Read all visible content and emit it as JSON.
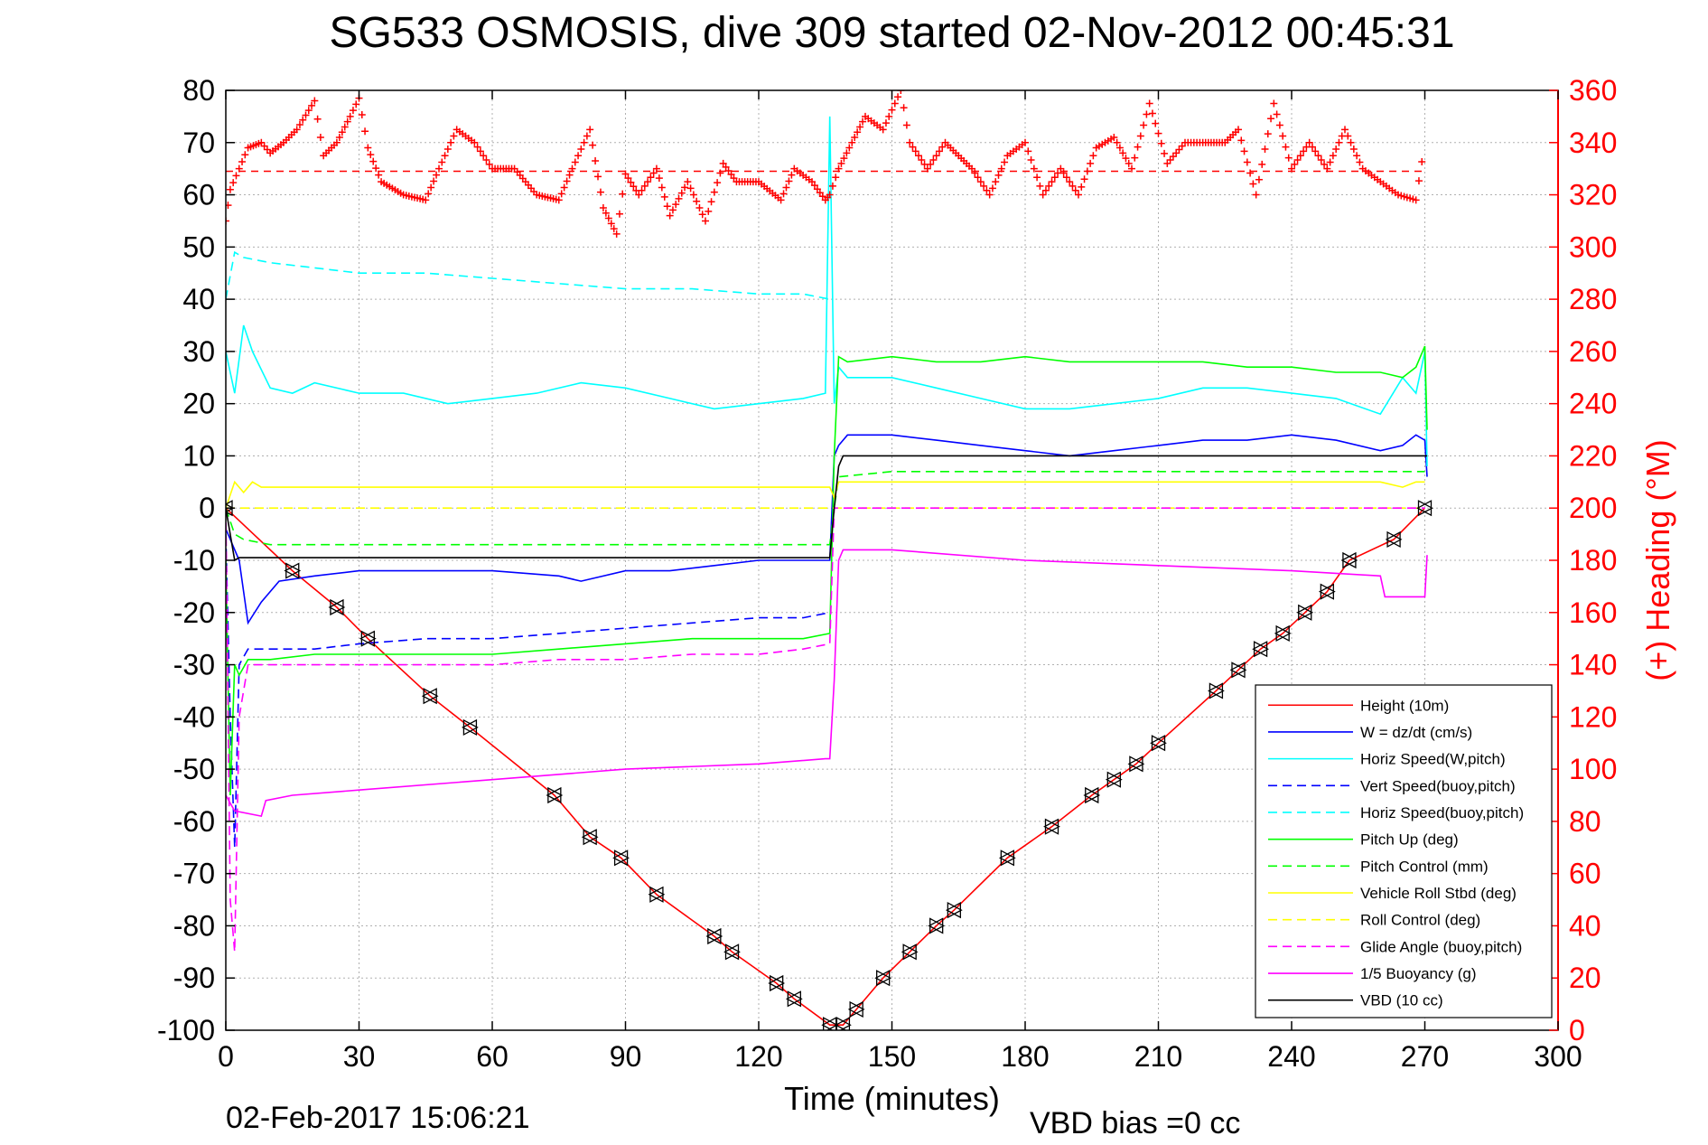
{
  "chart_data": {
    "type": "line",
    "title": "SG533 OSMOSIS, dive 309 started 02-Nov-2012 00:45:31",
    "xlabel": "Time (minutes)",
    "ylabel_left": "",
    "ylabel_right": "(+) Heading (°M)",
    "footer_left": "02-Feb-2017 15:06:21",
    "footer_right": "VBD bias =0 cc",
    "xlim": [
      0,
      300
    ],
    "xticks": [
      0,
      30,
      60,
      90,
      120,
      150,
      180,
      210,
      240,
      270,
      300
    ],
    "ylim_left": [
      -100,
      80
    ],
    "yticks_left": [
      80,
      70,
      60,
      50,
      40,
      30,
      20,
      10,
      0,
      -10,
      -20,
      -30,
      -40,
      -50,
      -60,
      -70,
      -80,
      -90,
      -100
    ],
    "ylim_right": [
      0,
      360
    ],
    "yticks_right": [
      360,
      340,
      320,
      300,
      280,
      260,
      240,
      220,
      200,
      180,
      160,
      140,
      120,
      100,
      80,
      60,
      40,
      20,
      0
    ],
    "grid": true,
    "legend_position": "bottom-right",
    "axis_color_right": "#ff0000",
    "series": [
      {
        "name": "Height (10m)",
        "color": "#ff0000",
        "dash": "solid",
        "x": [
          0,
          15,
          25,
          32,
          46,
          55,
          74,
          82,
          89,
          97,
          110,
          114,
          124,
          128,
          136,
          139,
          142,
          148,
          154,
          160,
          164,
          176,
          186,
          195,
          200,
          205,
          210,
          223,
          228,
          233,
          238,
          243,
          248,
          253,
          263,
          270
        ],
        "y": [
          0,
          -12,
          -19,
          -25,
          -36,
          -42,
          -55,
          -63,
          -67,
          -74,
          -82,
          -85,
          -91,
          -94,
          -99,
          -99,
          -96,
          -90,
          -85,
          -80,
          -77,
          -67,
          -61,
          -55,
          -52,
          -49,
          -45,
          -35,
          -31,
          -27,
          -24,
          -20,
          -16,
          -10,
          -6,
          0
        ]
      },
      {
        "name": "W = dz/dt (cm/s)",
        "color": "#0000ff",
        "dash": "solid",
        "x": [
          0,
          3,
          5,
          8,
          12,
          20,
          30,
          45,
          60,
          75,
          80,
          90,
          100,
          110,
          120,
          130,
          135,
          136,
          137,
          138,
          140,
          150,
          160,
          170,
          180,
          190,
          200,
          210,
          220,
          230,
          240,
          250,
          260,
          265,
          268,
          270,
          270.5
        ],
        "y": [
          -4,
          -10,
          -22,
          -18,
          -14,
          -13,
          -12,
          -12,
          -12,
          -13,
          -14,
          -12,
          -12,
          -11,
          -10,
          -10,
          -10,
          -10,
          10,
          12,
          14,
          14,
          13,
          12,
          11,
          10,
          11,
          12,
          13,
          13,
          14,
          13,
          11,
          12,
          14,
          13,
          6
        ]
      },
      {
        "name": "Horiz Speed(W,pitch)",
        "color": "#00ffff",
        "dash": "solid",
        "x": [
          0,
          2,
          4,
          6,
          10,
          15,
          20,
          30,
          40,
          50,
          60,
          70,
          80,
          90,
          100,
          110,
          120,
          130,
          135,
          136,
          137,
          138,
          140,
          150,
          160,
          170,
          180,
          190,
          200,
          210,
          220,
          230,
          240,
          250,
          260,
          265,
          268,
          270,
          270.5
        ],
        "y": [
          30,
          22,
          35,
          30,
          23,
          22,
          24,
          22,
          22,
          20,
          21,
          22,
          24,
          23,
          21,
          19,
          20,
          21,
          22,
          75,
          20,
          27,
          25,
          25,
          23,
          21,
          19,
          19,
          20,
          21,
          23,
          23,
          22,
          21,
          18,
          25,
          22,
          30,
          8
        ]
      },
      {
        "name": "Vert Speed(buoy,pitch)",
        "color": "#0000ff",
        "dash": "dashed",
        "x": [
          0,
          1,
          2,
          3,
          5,
          10,
          20,
          30,
          45,
          60,
          75,
          90,
          105,
          120,
          130,
          136
        ],
        "y": [
          -5,
          -40,
          -65,
          -30,
          -27,
          -27,
          -27,
          -26,
          -25,
          -25,
          -24,
          -23,
          -22,
          -21,
          -21,
          -20
        ]
      },
      {
        "name": "Horiz Speed(buoy,pitch)",
        "color": "#00ffff",
        "dash": "dashed",
        "x": [
          0,
          2,
          4,
          10,
          20,
          30,
          45,
          60,
          75,
          90,
          105,
          120,
          130,
          136
        ],
        "y": [
          40,
          49,
          48,
          47,
          46,
          45,
          45,
          44,
          43,
          42,
          42,
          41,
          41,
          40
        ]
      },
      {
        "name": "Pitch Up (deg)",
        "color": "#00ff00",
        "dash": "solid",
        "x": [
          0,
          1,
          2,
          3,
          5,
          10,
          20,
          30,
          45,
          60,
          75,
          90,
          105,
          120,
          130,
          136,
          137,
          138,
          140,
          150,
          160,
          170,
          180,
          190,
          200,
          210,
          220,
          230,
          240,
          250,
          260,
          265,
          268,
          270,
          270.5
        ],
        "y": [
          -10,
          -55,
          -30,
          -32,
          -29,
          -29,
          -28,
          -28,
          -28,
          -28,
          -27,
          -26,
          -25,
          -25,
          -25,
          -24,
          10,
          29,
          28,
          29,
          28,
          28,
          29,
          28,
          28,
          28,
          28,
          27,
          27,
          26,
          26,
          25,
          27,
          31,
          15
        ]
      },
      {
        "name": "Pitch Control (mm)",
        "color": "#00ff00",
        "dash": "dashed",
        "x": [
          0,
          2,
          4,
          10,
          30,
          60,
          90,
          120,
          136,
          137,
          138,
          150,
          180,
          210,
          240,
          270
        ],
        "y": [
          0,
          -5,
          -6,
          -7,
          -7,
          -7,
          -7,
          -7,
          -7,
          0,
          6,
          7,
          7,
          7,
          7,
          7
        ]
      },
      {
        "name": "Vehicle Roll Stbd (deg)",
        "color": "#ffff00",
        "dash": "solid",
        "x": [
          0,
          2,
          4,
          6,
          8,
          10,
          30,
          60,
          90,
          120,
          136,
          137,
          138,
          140,
          150,
          180,
          210,
          240,
          260,
          265,
          268,
          270
        ],
        "y": [
          0,
          5,
          3,
          5,
          4,
          4,
          4,
          4,
          4,
          4,
          4,
          2,
          5,
          5,
          5,
          5,
          5,
          5,
          5,
          4,
          5,
          5
        ]
      },
      {
        "name": "Roll Control (deg)",
        "color": "#ffff00",
        "dash": "dashed",
        "x": [
          0,
          5,
          30,
          60,
          90,
          120,
          136,
          137,
          140,
          180,
          240,
          270
        ],
        "y": [
          0,
          0,
          0,
          0,
          0,
          0,
          0,
          0,
          0,
          0,
          0,
          0
        ]
      },
      {
        "name": "Glide Angle (buoy,pitch)",
        "color": "#ff00ff",
        "dash": "dashed",
        "x": [
          0,
          1,
          2,
          3,
          5,
          10,
          20,
          30,
          45,
          60,
          75,
          90,
          105,
          120,
          130,
          136,
          137,
          138,
          140,
          180,
          240,
          270
        ],
        "y": [
          0,
          -75,
          -85,
          -40,
          -30,
          -30,
          -30,
          -30,
          -30,
          -30,
          -29,
          -29,
          -28,
          -28,
          -27,
          -26,
          0,
          0,
          0,
          0,
          0,
          0
        ]
      },
      {
        "name": "1/5 Buoyancy (g)",
        "color": "#ff00ff",
        "dash": "solid",
        "x": [
          0,
          2,
          8,
          9,
          15,
          30,
          60,
          90,
          120,
          135,
          136,
          137,
          138,
          139,
          150,
          180,
          210,
          240,
          260,
          261,
          270,
          270.5
        ],
        "y": [
          -55,
          -58,
          -59,
          -56,
          -55,
          -54,
          -52,
          -50,
          -49,
          -48,
          -48,
          -33,
          -10,
          -8,
          -8,
          -10,
          -11,
          -12,
          -13,
          -17,
          -17,
          -9
        ]
      },
      {
        "name": "VBD (10 cc)",
        "color": "#000000",
        "dash": "solid",
        "x": [
          0,
          1,
          2,
          3,
          136,
          137,
          138,
          139,
          270,
          270.5
        ],
        "y": [
          0,
          -5,
          -10,
          -9.5,
          -9.5,
          0,
          8,
          10,
          10,
          10
        ]
      }
    ],
    "heading_series": {
      "name": "(+) Heading (°M)",
      "color": "#ff0000",
      "marker": "+",
      "axis": "right",
      "mean_line_value": 329,
      "x": [
        0,
        1,
        3,
        5,
        8,
        10,
        13,
        16,
        20,
        22,
        25,
        28,
        30,
        32,
        35,
        40,
        45,
        48,
        52,
        56,
        60,
        65,
        70,
        75,
        78,
        82,
        85,
        88,
        90,
        93,
        97,
        100,
        104,
        108,
        112,
        115,
        120,
        125,
        128,
        132,
        135,
        136,
        138,
        141,
        144,
        148,
        152,
        154,
        158,
        162,
        168,
        172,
        176,
        180,
        184,
        188,
        192,
        196,
        200,
        204,
        208,
        212,
        216,
        220,
        225,
        228,
        232,
        236,
        240,
        244,
        248,
        252,
        256,
        260,
        264,
        268,
        270
      ],
      "y": [
        310,
        322,
        330,
        338,
        340,
        336,
        340,
        345,
        356,
        335,
        340,
        350,
        357,
        338,
        325,
        320,
        318,
        330,
        345,
        340,
        330,
        330,
        320,
        318,
        330,
        345,
        315,
        305,
        328,
        320,
        330,
        312,
        325,
        310,
        332,
        325,
        325,
        318,
        330,
        325,
        318,
        320,
        330,
        340,
        350,
        345,
        360,
        340,
        330,
        340,
        330,
        320,
        335,
        340,
        320,
        330,
        320,
        338,
        342,
        330,
        355,
        332,
        340,
        340,
        340,
        345,
        320,
        355,
        330,
        340,
        330,
        345,
        330,
        325,
        320,
        318,
        340
      ]
    }
  }
}
